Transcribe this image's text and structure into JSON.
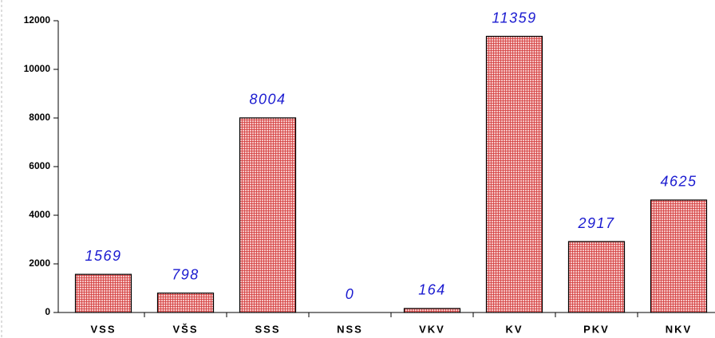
{
  "chart_data": {
    "type": "bar",
    "categories": [
      "VSS",
      "VŠS",
      "SSS",
      "NSS",
      "VKV",
      "KV",
      "PKV",
      "NKV"
    ],
    "values": [
      1569,
      798,
      8004,
      0,
      164,
      11359,
      2917,
      4625
    ],
    "color": "#e04040",
    "ylim": [
      0,
      12000
    ],
    "yticks": [
      0,
      2000,
      4000,
      6000,
      8000,
      10000,
      12000
    ]
  }
}
